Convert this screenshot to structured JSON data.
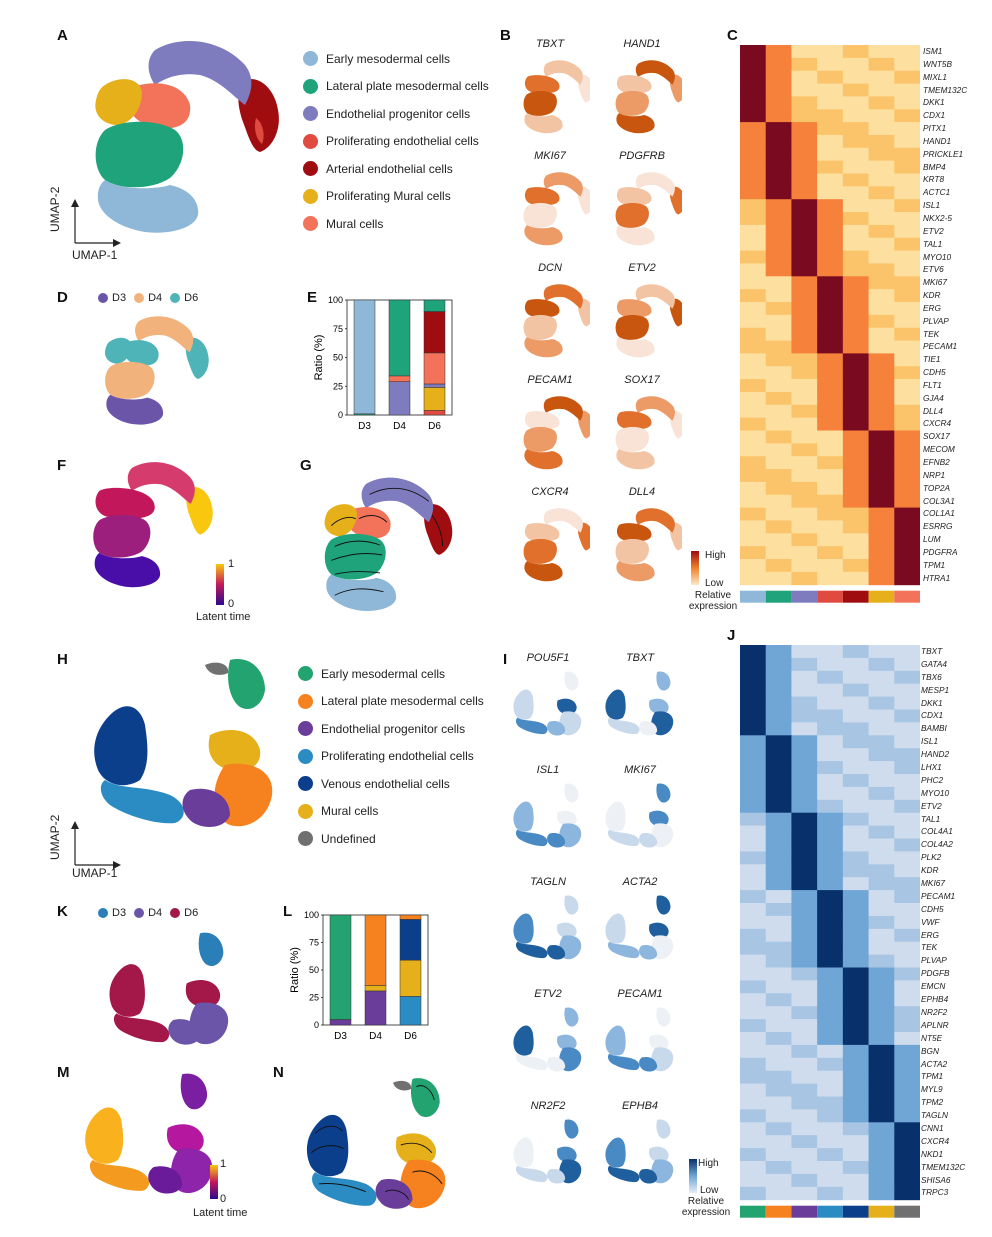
{
  "panels": {
    "A": "A",
    "B": "B",
    "C": "C",
    "D": "D",
    "E": "E",
    "F": "F",
    "G": "G",
    "H": "H",
    "I": "I",
    "J": "J",
    "K": "K",
    "L": "L",
    "M": "M",
    "N": "N"
  },
  "umap_axes": {
    "x": "UMAP-1",
    "y": "UMAP-2"
  },
  "legend_top": [
    {
      "label": "Early mesodermal cells",
      "color": "#8fb8d8"
    },
    {
      "label": "Lateral plate mesodermal cells",
      "color": "#1fa37a"
    },
    {
      "label": "Endothelial progenitor cells",
      "color": "#7f7bbf"
    },
    {
      "label": "Proliferating endothelial cells",
      "color": "#e04a3f"
    },
    {
      "label": "Arterial endothelial cells",
      "color": "#a00d10"
    },
    {
      "label": "Proliferating Mural cells",
      "color": "#e6b01b"
    },
    {
      "label": "Mural cells",
      "color": "#f2735a"
    }
  ],
  "legend_bottom": [
    {
      "label": "Early mesodermal cells",
      "color": "#22a36f"
    },
    {
      "label": "Lateral plate mesodermal cells",
      "color": "#f5821f"
    },
    {
      "label": "Endothelial progenitor cells",
      "color": "#6a3d9a"
    },
    {
      "label": "Proliferating endothelial cells",
      "color": "#2b8cc4"
    },
    {
      "label": "Venous endothelial cells",
      "color": "#0b3f8c"
    },
    {
      "label": "Mural cells",
      "color": "#e6b01b"
    },
    {
      "label": "Undefined",
      "color": "#707070"
    }
  ],
  "day_legend_top": [
    {
      "label": "D3",
      "color": "#6a55a8"
    },
    {
      "label": "D4",
      "color": "#f2b27c"
    },
    {
      "label": "D6",
      "color": "#4fb4b8"
    }
  ],
  "day_legend_bottom": [
    {
      "label": "D3",
      "color": "#2b7fb8"
    },
    {
      "label": "D4",
      "color": "#6a55a8"
    },
    {
      "label": "D6",
      "color": "#a31848"
    }
  ],
  "genes_B": [
    "TBXT",
    "HAND1",
    "MKI67",
    "PDGFRB",
    "DCN",
    "ETV2",
    "PECAM1",
    "SOX17",
    "CXCR4",
    "DLL4"
  ],
  "genes_I": [
    "POU5F1",
    "TBXT",
    "ISL1",
    "MKI67",
    "TAGLN",
    "ACTA2",
    "ETV2",
    "PECAM1",
    "NR2F2",
    "EPHB4"
  ],
  "expr_legend_red": {
    "high": "High",
    "low": "Low",
    "title": "Relative expression"
  },
  "expr_legend_blue": {
    "high": "High",
    "low": "Low",
    "title": "Relative expression"
  },
  "latent_legend": {
    "max": "1",
    "min": "0",
    "title": "Latent time"
  },
  "genes_C": [
    "ISM1",
    "WNT5B",
    "MIXL1",
    "TMEM132C",
    "DKK1",
    "CDX1",
    "PITX1",
    "HAND1",
    "PRICKLE1",
    "BMP4",
    "KRT8",
    "ACTC1",
    "ISL1",
    "NKX2-5",
    "ETV2",
    "TAL1",
    "MYO10",
    "ETV6",
    "MKI67",
    "KDR",
    "ERG",
    "PLVAP",
    "TEK",
    "PECAM1",
    "TIE1",
    "CDH5",
    "FLT1",
    "GJA4",
    "DLL4",
    "CXCR4",
    "SOX17",
    "MECOM",
    "EFNB2",
    "NRP1",
    "TOP2A",
    "COL3A1",
    "COL1A1",
    "ESRRG",
    "LUM",
    "PDGFRA",
    "TPM1",
    "HTRA1"
  ],
  "genes_J": [
    "TBXT",
    "GATA4",
    "TBX6",
    "MESP1",
    "DKK1",
    "CDX1",
    "BAMBI",
    "ISL1",
    "HAND2",
    "LHX1",
    "PHC2",
    "MYO10",
    "ETV2",
    "TAL1",
    "COL4A1",
    "COL4A2",
    "PLK2",
    "KDR",
    "MKI67",
    "PECAM1",
    "CDH5",
    "VWF",
    "ERG",
    "TEK",
    "PLVAP",
    "PDGFB",
    "EMCN",
    "EPHB4",
    "NR2F2",
    "APLNR",
    "NT5E",
    "BGN",
    "ACTA2",
    "TPM1",
    "MYL9",
    "TPM2",
    "TAGLN",
    "CNN1",
    "CXCR4",
    "NKD1",
    "TMEM132C",
    "SHISA6",
    "TRPC3"
  ],
  "chart_data": [
    {
      "type": "bar",
      "panel": "E",
      "title": "",
      "ylabel": "Ratio (%)",
      "xlabel": "",
      "ylim": [
        0,
        100
      ],
      "yticks": [
        "0",
        "25",
        "50",
        "75",
        "100"
      ],
      "categories": [
        "D3",
        "D4",
        "D6"
      ],
      "stacked": true,
      "series": [
        {
          "name": "Proliferating endothelial cells",
          "color": "#e04a3f",
          "values": [
            0,
            0,
            4
          ]
        },
        {
          "name": "Proliferating Mural cells",
          "color": "#e6b01b",
          "values": [
            0,
            0,
            20
          ]
        },
        {
          "name": "Endothelial progenitor cells",
          "color": "#7f7bbf",
          "values": [
            0,
            29,
            3
          ]
        },
        {
          "name": "Mural cells",
          "color": "#f2735a",
          "values": [
            0,
            5,
            27
          ]
        },
        {
          "name": "Arterial endothelial cells",
          "color": "#a00d10",
          "values": [
            0,
            0,
            36
          ]
        },
        {
          "name": "Lateral plate mesodermal cells",
          "color": "#1fa37a",
          "values": [
            1,
            66,
            10
          ]
        },
        {
          "name": "Early mesodermal cells",
          "color": "#8fb8d8",
          "values": [
            99,
            0,
            0
          ]
        }
      ]
    },
    {
      "type": "bar",
      "panel": "L",
      "title": "",
      "ylabel": "Ratio (%)",
      "xlabel": "",
      "ylim": [
        0,
        100
      ],
      "yticks": [
        "0",
        "25",
        "50",
        "75",
        "100"
      ],
      "categories": [
        "D3",
        "D4",
        "D6"
      ],
      "stacked": true,
      "series": [
        {
          "name": "Endothelial progenitor cells",
          "color": "#6a3d9a",
          "values": [
            5,
            31,
            0
          ]
        },
        {
          "name": "Proliferating endothelial cells",
          "color": "#2b8cc4",
          "values": [
            0,
            0,
            26
          ]
        },
        {
          "name": "Mural cells",
          "color": "#e6b01b",
          "values": [
            0,
            5,
            33
          ]
        },
        {
          "name": "Venous endothelial cells",
          "color": "#0b3f8c",
          "values": [
            0,
            0,
            37
          ]
        },
        {
          "name": "Lateral plate mesodermal cells",
          "color": "#f5821f",
          "values": [
            0,
            64,
            4
          ]
        },
        {
          "name": "Early mesodermal cells",
          "color": "#22a36f",
          "values": [
            95,
            0,
            0
          ]
        }
      ]
    }
  ]
}
